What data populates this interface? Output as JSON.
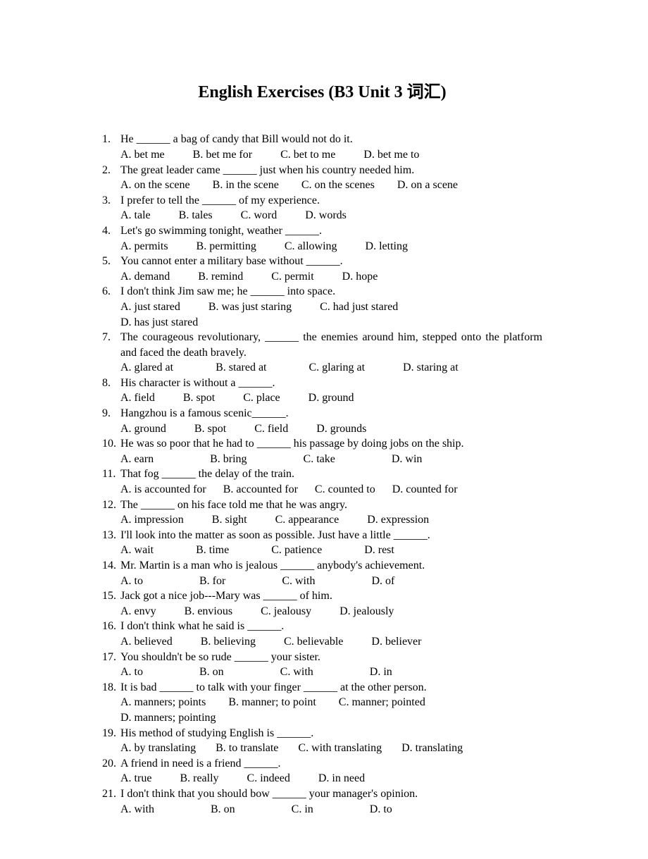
{
  "title": "English Exercises (B3 Unit 3 词汇)",
  "questions": [
    {
      "num": "1.",
      "text": "He ______ a bag of candy that Bill would not do it.",
      "opts": [
        "A. bet me",
        "B. bet me for",
        "C. bet to me",
        "D. bet me to"
      ],
      "optGaps": [
        40,
        40,
        40
      ]
    },
    {
      "num": "2.",
      "text": "The great leader came ______ just when his country needed him.",
      "opts": [
        "A. on the scene",
        "B. in the scene",
        "C. on the scenes",
        "D. on a scene"
      ],
      "optGaps": [
        32,
        32,
        32
      ]
    },
    {
      "num": "3.",
      "text": "I prefer to tell the ______ of my experience.",
      "opts": [
        "A. tale",
        "B. tales",
        "C. word",
        "D. words"
      ],
      "optGaps": [
        40,
        40,
        40
      ]
    },
    {
      "num": "4.",
      "text": "Let's go swimming tonight, weather ______.",
      "opts": [
        "A. permits",
        "B. permitting",
        "C. allowing",
        "D. letting"
      ],
      "optGaps": [
        40,
        40,
        40
      ]
    },
    {
      "num": "5.",
      "text": "You cannot enter a military base without ______.",
      "opts": [
        "A. demand",
        "B. remind",
        "C. permit",
        "D. hope"
      ],
      "optGaps": [
        40,
        40,
        40
      ]
    },
    {
      "num": "6.",
      "text": "I don't think Jim saw me; he ______ into space.",
      "opts": [
        "A. just stared",
        "B. was just staring",
        "C. had just stared",
        "D. has just stared"
      ],
      "optGaps": [
        40,
        40,
        40
      ],
      "wrapLast": true
    },
    {
      "num": "7.",
      "text": "The courageous revolutionary, ______ the enemies around him, stepped onto the platform and faced the death bravely.",
      "opts": [
        "A. glared at",
        "B. stared at",
        "C. glaring at",
        "D. staring at"
      ],
      "optGaps": [
        60,
        60,
        54
      ],
      "justify": true
    },
    {
      "num": "8.",
      "text": "His character is without a ______.",
      "opts": [
        "A. field",
        "B. spot",
        "C. place",
        "D. ground"
      ],
      "optGaps": [
        40,
        40,
        40
      ]
    },
    {
      "num": "9.",
      "text": "Hangzhou is a famous scenic______.",
      "opts": [
        "A. ground",
        "B. spot",
        "C. field",
        "D. grounds"
      ],
      "optGaps": [
        40,
        40,
        40
      ]
    },
    {
      "num": "10.",
      "text": "He was so poor that he had to ______ his passage by doing jobs on the ship.",
      "opts": [
        "A. earn",
        "B. bring",
        "C. take",
        "D. win"
      ],
      "optGaps": [
        80,
        80,
        80
      ]
    },
    {
      "num": "11.",
      "text": "That fog ______ the delay of the train.",
      "opts": [
        "A. is accounted for",
        "B. accounted for",
        "C. counted to",
        "D. counted for"
      ],
      "optGaps": [
        24,
        24,
        24
      ]
    },
    {
      "num": "12.",
      "text": "The ______ on his face told me that he was angry.",
      "opts": [
        "A. impression",
        "B. sight",
        "C. appearance",
        "D. expression"
      ],
      "optGaps": [
        40,
        40,
        40
      ]
    },
    {
      "num": "13.",
      "text": "I'll look into the matter as soon as possible. Just have a little ______.",
      "opts": [
        "A. wait",
        "B. time",
        "C. patience",
        "D. rest"
      ],
      "optGaps": [
        60,
        60,
        60
      ]
    },
    {
      "num": "14.",
      "text": "Mr. Martin is a man who is jealous ______ anybody's achievement.",
      "opts": [
        "A. to",
        "B. for",
        "C. with",
        "D. of"
      ],
      "optGaps": [
        80,
        80,
        80
      ]
    },
    {
      "num": "15.",
      "text": "Jack got a nice job---Mary was ______ of him.",
      "opts": [
        "A. envy",
        "B. envious",
        "C. jealousy",
        "D. jealously"
      ],
      "optGaps": [
        40,
        40,
        40
      ]
    },
    {
      "num": "16.",
      "text": "I don't think what he said is ______.",
      "opts": [
        "A. believed",
        "B. believing",
        "C. believable",
        "D. believer"
      ],
      "optGaps": [
        40,
        40,
        40
      ]
    },
    {
      "num": "17.",
      "text": "You shouldn't be so rude ______ your sister.",
      "opts": [
        "A. to",
        "B. on",
        "C. with",
        "D. in"
      ],
      "optGaps": [
        80,
        80,
        80
      ]
    },
    {
      "num": "18.",
      "text": "It is bad ______ to talk with your finger ______ at the other person.",
      "opts": [
        "A. manners; points",
        "B. manner; to point",
        "C. manner; pointed",
        "D. manners; pointing"
      ],
      "optGaps": [
        32,
        32,
        32
      ],
      "wrapLast": true
    },
    {
      "num": "19.",
      "text": "His method of studying English is ______.",
      "opts": [
        "A. by translating",
        "B. to translate",
        "C. with translating",
        "D. translating"
      ],
      "optGaps": [
        28,
        28,
        28
      ]
    },
    {
      "num": "20.",
      "text": "A friend in need is a friend ______.",
      "opts": [
        "A. true",
        "B. really",
        "C. indeed",
        "D. in need"
      ],
      "optGaps": [
        40,
        40,
        40
      ]
    },
    {
      "num": "21.",
      "text": "I don't think that you should bow ______ your manager's opinion.",
      "opts": [
        "A. with",
        "B. on",
        "C. in",
        "D. to"
      ],
      "optGaps": [
        80,
        80,
        80
      ]
    }
  ]
}
